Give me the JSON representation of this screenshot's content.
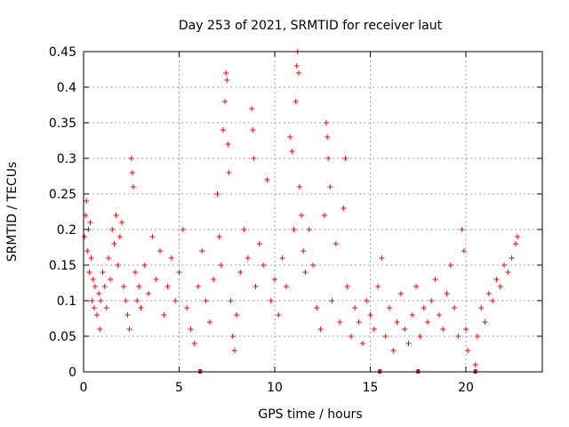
{
  "chart_data": {
    "type": "scatter",
    "title": "Day 253 of 2021, SRMTID for receiver laut",
    "xlabel": "GPS time / hours",
    "ylabel": "SRMTID / TECUs",
    "xlim": [
      0,
      24
    ],
    "ylim": [
      0,
      0.45
    ],
    "x_ticks": [
      "0",
      "5",
      "10",
      "15",
      "20"
    ],
    "y_ticks": [
      "0",
      "0.05",
      "0.1",
      "0.15",
      "0.2",
      "0.25",
      "0.3",
      "0.35",
      "0.4",
      "0.45"
    ],
    "grid": true,
    "marker": "+",
    "color": "#ff0000",
    "series": [
      {
        "points": [
          [
            0.05,
            0.19
          ],
          [
            0.1,
            0.22
          ],
          [
            0.15,
            0.24
          ],
          [
            0.2,
            0.17
          ],
          [
            0.25,
            0.2
          ],
          [
            0.3,
            0.14
          ],
          [
            0.35,
            0.21
          ],
          [
            0.4,
            0.16
          ],
          [
            0.45,
            0.1
          ],
          [
            0.5,
            0.13
          ],
          [
            0.55,
            0.09
          ],
          [
            0.6,
            0.12
          ],
          [
            0.7,
            0.08
          ],
          [
            0.8,
            0.11
          ],
          [
            0.85,
            0.06
          ],
          [
            0.9,
            0.1
          ],
          [
            1.0,
            0.14
          ],
          [
            1.1,
            0.12
          ],
          [
            1.2,
            0.09
          ],
          [
            1.3,
            0.16
          ],
          [
            1.4,
            0.13
          ],
          [
            1.5,
            0.2
          ],
          [
            1.6,
            0.18
          ],
          [
            1.7,
            0.22
          ],
          [
            1.8,
            0.15
          ],
          [
            1.9,
            0.19
          ],
          [
            2.0,
            0.21
          ],
          [
            2.1,
            0.12
          ],
          [
            2.2,
            0.1
          ],
          [
            2.3,
            0.08
          ],
          [
            2.4,
            0.06
          ],
          [
            2.5,
            0.3
          ],
          [
            2.55,
            0.28
          ],
          [
            2.6,
            0.26
          ],
          [
            2.7,
            0.14
          ],
          [
            2.8,
            0.1
          ],
          [
            2.9,
            0.12
          ],
          [
            3.0,
            0.09
          ],
          [
            3.2,
            0.15
          ],
          [
            3.4,
            0.11
          ],
          [
            3.6,
            0.19
          ],
          [
            3.8,
            0.13
          ],
          [
            4.0,
            0.17
          ],
          [
            4.2,
            0.08
          ],
          [
            4.4,
            0.12
          ],
          [
            4.6,
            0.16
          ],
          [
            4.8,
            0.1
          ],
          [
            5.0,
            0.14
          ],
          [
            5.2,
            0.2
          ],
          [
            5.4,
            0.09
          ],
          [
            5.6,
            0.06
          ],
          [
            5.8,
            0.04
          ],
          [
            6.0,
            0.12
          ],
          [
            6.2,
            0.17
          ],
          [
            6.4,
            0.1
          ],
          [
            6.6,
            0.07
          ],
          [
            6.8,
            0.13
          ],
          [
            7.0,
            0.25
          ],
          [
            7.1,
            0.19
          ],
          [
            7.2,
            0.15
          ],
          [
            7.3,
            0.34
          ],
          [
            7.4,
            0.38
          ],
          [
            7.45,
            0.42
          ],
          [
            7.5,
            0.41
          ],
          [
            7.55,
            0.32
          ],
          [
            7.6,
            0.28
          ],
          [
            7.7,
            0.1
          ],
          [
            7.8,
            0.05
          ],
          [
            7.9,
            0.03
          ],
          [
            8.0,
            0.08
          ],
          [
            8.2,
            0.14
          ],
          [
            8.4,
            0.2
          ],
          [
            8.6,
            0.16
          ],
          [
            8.8,
            0.37
          ],
          [
            8.85,
            0.34
          ],
          [
            8.9,
            0.3
          ],
          [
            9.0,
            0.12
          ],
          [
            9.2,
            0.18
          ],
          [
            9.4,
            0.15
          ],
          [
            9.6,
            0.27
          ],
          [
            9.8,
            0.1
          ],
          [
            10.0,
            0.13
          ],
          [
            10.2,
            0.08
          ],
          [
            10.4,
            0.16
          ],
          [
            10.6,
            0.12
          ],
          [
            10.8,
            0.33
          ],
          [
            10.9,
            0.31
          ],
          [
            11.0,
            0.2
          ],
          [
            11.1,
            0.38
          ],
          [
            11.15,
            0.43
          ],
          [
            11.2,
            0.45
          ],
          [
            11.25,
            0.42
          ],
          [
            11.3,
            0.26
          ],
          [
            11.4,
            0.22
          ],
          [
            11.5,
            0.17
          ],
          [
            11.6,
            0.14
          ],
          [
            11.8,
            0.2
          ],
          [
            12.0,
            0.15
          ],
          [
            12.2,
            0.09
          ],
          [
            12.4,
            0.06
          ],
          [
            12.6,
            0.22
          ],
          [
            12.7,
            0.35
          ],
          [
            12.75,
            0.33
          ],
          [
            12.8,
            0.3
          ],
          [
            12.9,
            0.26
          ],
          [
            13.0,
            0.1
          ],
          [
            13.2,
            0.18
          ],
          [
            13.4,
            0.07
          ],
          [
            13.6,
            0.23
          ],
          [
            13.7,
            0.3
          ],
          [
            13.8,
            0.12
          ],
          [
            14.0,
            0.05
          ],
          [
            14.2,
            0.09
          ],
          [
            14.4,
            0.07
          ],
          [
            14.6,
            0.04
          ],
          [
            14.8,
            0.1
          ],
          [
            15.0,
            0.08
          ],
          [
            15.2,
            0.06
          ],
          [
            15.4,
            0.12
          ],
          [
            15.6,
            0.16
          ],
          [
            15.8,
            0.05
          ],
          [
            16.0,
            0.09
          ],
          [
            16.2,
            0.03
          ],
          [
            16.4,
            0.07
          ],
          [
            16.6,
            0.11
          ],
          [
            16.8,
            0.06
          ],
          [
            17.0,
            0.04
          ],
          [
            17.2,
            0.08
          ],
          [
            17.4,
            0.12
          ],
          [
            17.6,
            0.05
          ],
          [
            17.8,
            0.09
          ],
          [
            18.0,
            0.07
          ],
          [
            18.2,
            0.1
          ],
          [
            18.4,
            0.13
          ],
          [
            18.6,
            0.08
          ],
          [
            18.8,
            0.06
          ],
          [
            19.0,
            0.11
          ],
          [
            19.2,
            0.15
          ],
          [
            19.4,
            0.09
          ],
          [
            19.6,
            0.05
          ],
          [
            19.8,
            0.2
          ],
          [
            19.9,
            0.17
          ],
          [
            20.0,
            0.06
          ],
          [
            20.1,
            0.03
          ],
          [
            20.5,
            0.01
          ],
          [
            20.6,
            0.05
          ],
          [
            20.8,
            0.09
          ],
          [
            21.0,
            0.07
          ],
          [
            21.2,
            0.11
          ],
          [
            21.4,
            0.1
          ],
          [
            21.6,
            0.13
          ],
          [
            21.8,
            0.12
          ],
          [
            22.0,
            0.15
          ],
          [
            22.2,
            0.14
          ],
          [
            22.4,
            0.16
          ],
          [
            22.6,
            0.18
          ],
          [
            22.7,
            0.19
          ]
        ]
      }
    ],
    "gap_markers_x": [
      6.1,
      15.5,
      17.5,
      20.5
    ]
  }
}
